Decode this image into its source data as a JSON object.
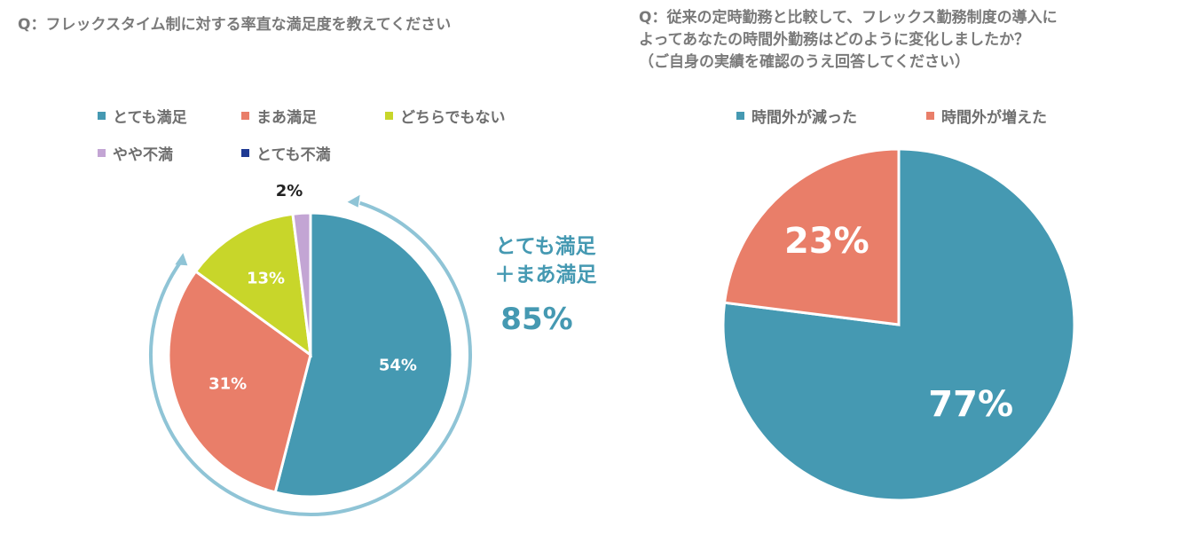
{
  "chart_data": [
    {
      "type": "pie",
      "title": "Q：フレックスタイム制に対する率直な満足度を教えてください",
      "categories": [
        "とても満足",
        "まあ満足",
        "どちらでもない",
        "やや不満",
        "とても不満"
      ],
      "values": [
        54,
        31,
        13,
        2,
        0
      ],
      "labels": [
        "54%",
        "31%",
        "13%",
        "2%",
        ""
      ],
      "colors": [
        "#4599b2",
        "#e97e69",
        "#c8d62a",
        "#c3a5d4",
        "#1f3a93"
      ],
      "legend": "top",
      "annotation": {
        "line1": "とても満足",
        "line2": "＋まあ満足",
        "value": "85%",
        "arrow_color": "#8fc4d6"
      }
    },
    {
      "type": "pie",
      "title": "Q：従来の定時勤務と比較して、フレックス勤務制度の導入に\nよってあなたの時間外勤務はどのように変化しましたか？\n（ご自身の実績を確認のうえ回答してください）",
      "categories": [
        "時間外が減った",
        "時間外が増えた"
      ],
      "values": [
        77,
        23
      ],
      "labels": [
        "77%",
        "23%"
      ],
      "colors": [
        "#4599b2",
        "#e97e69"
      ],
      "legend": "top"
    }
  ]
}
